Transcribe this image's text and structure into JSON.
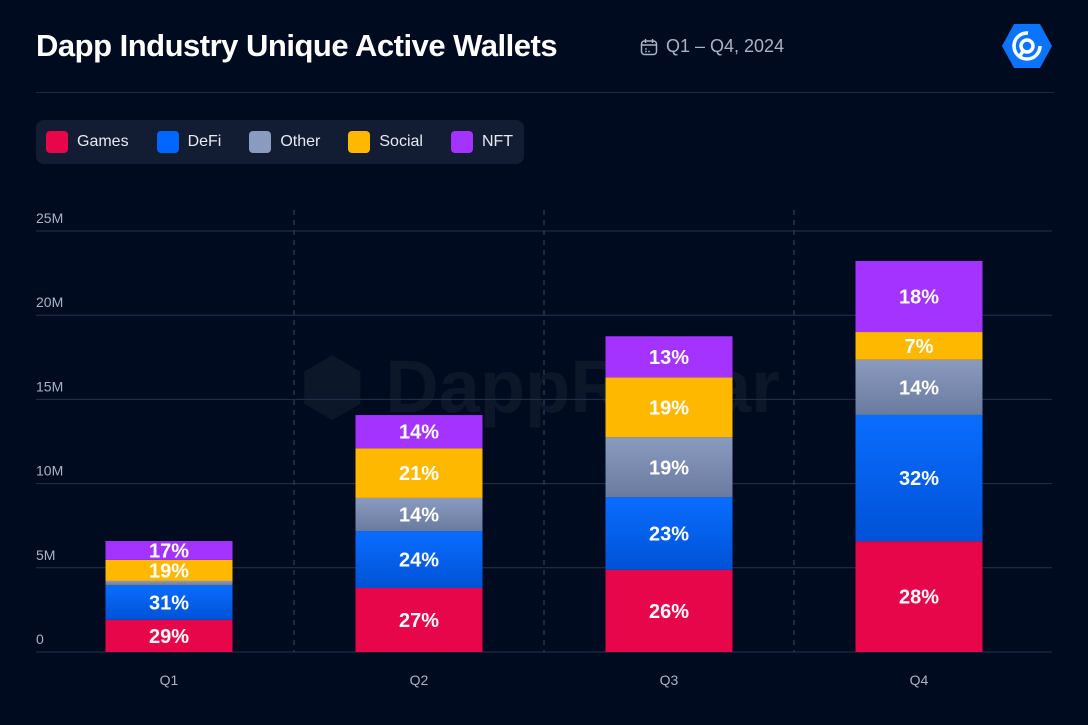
{
  "header": {
    "title": "Dapp Industry Unique Active Wallets",
    "period": "Q1 – Q4, 2024",
    "calendar_icon": "calendar-icon",
    "logo": "DappRadar"
  },
  "watermark": "DappRadar",
  "chart_data": {
    "type": "bar",
    "stacked": true,
    "title": "Dapp Industry Unique Active Wallets",
    "categories": [
      "Q1",
      "Q2",
      "Q3",
      "Q4"
    ],
    "ylim": [
      0,
      25
    ],
    "yticks": [
      0,
      5,
      10,
      15,
      20,
      25
    ],
    "ytick_labels": [
      "0",
      "5M",
      "10M",
      "15M",
      "20M",
      "25M"
    ],
    "grid": true,
    "legend_position": "top-left",
    "unit": "millions of wallets",
    "series": [
      {
        "name": "Games",
        "color": "#e8064a",
        "values": [
          1.91,
          3.8,
          4.88,
          6.57
        ],
        "labels": [
          "29%",
          "27%",
          "26%",
          "28%"
        ]
      },
      {
        "name": "DeFi",
        "color": "#0066ff",
        "values": [
          2.05,
          3.38,
          4.31,
          7.51
        ],
        "labels": [
          "31%",
          "24%",
          "23%",
          "32%"
        ]
      },
      {
        "name": "Other",
        "color": "#8a9bbf",
        "values": [
          0.26,
          1.97,
          3.56,
          3.28
        ],
        "labels": [
          "",
          "14%",
          "19%",
          "14%"
        ]
      },
      {
        "name": "Social",
        "color": "#ffb800",
        "values": [
          1.25,
          2.95,
          3.56,
          1.64
        ],
        "labels": [
          "19%",
          "21%",
          "19%",
          "7%"
        ]
      },
      {
        "name": "NFT",
        "color": "#a533ff",
        "values": [
          1.12,
          1.97,
          2.44,
          4.22
        ],
        "labels": [
          "17%",
          "14%",
          "13%",
          "18%"
        ]
      }
    ]
  }
}
